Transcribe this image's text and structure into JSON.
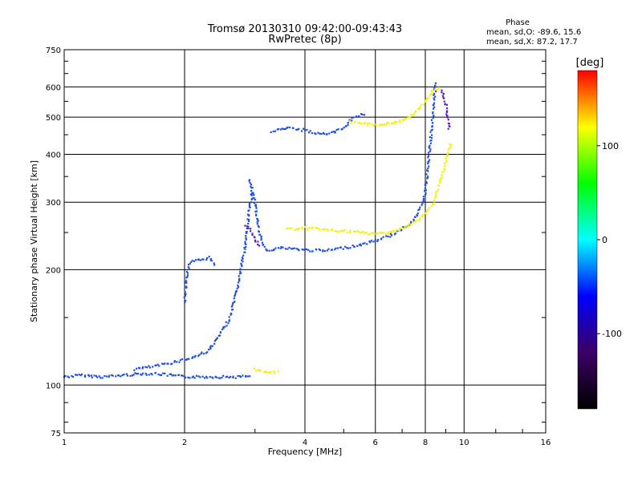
{
  "chart_data": {
    "type": "scatter",
    "title": "Tromsø 20130310 09:42:00-09:43:43",
    "subtitle": "RwPretec (8p)",
    "xlabel": "Frequency [MHz]",
    "ylabel": "Stationary phase Virtual Height [km]",
    "x_scale": "log2",
    "y_scale": "log",
    "xlim": [
      1,
      16
    ],
    "ylim": [
      75,
      750
    ],
    "x_ticks": [
      1,
      2,
      4,
      6,
      8,
      10,
      16
    ],
    "y_ticks": [
      75,
      100,
      200,
      300,
      400,
      500,
      600,
      750
    ],
    "grid": true,
    "stats": {
      "heading": "Phase",
      "line_o": "mean, sd,O: -89.6, 15.6",
      "line_x": "mean, sd,X:  87.2, 17.7"
    },
    "colorbar": {
      "label": "[deg]",
      "range": [
        -180,
        180
      ],
      "ticks": [
        100,
        0,
        -100
      ],
      "colors": [
        "#ff0000",
        "#ffff00",
        "#00ff00",
        "#00ffff",
        "#0000ff",
        "#3c0064",
        "#000000"
      ]
    },
    "series": [
      {
        "mode": "O",
        "color": "#1f4fe6",
        "mean_phase": -89.6,
        "traces": [
          [
            [
              1.0,
              105
            ],
            [
              1.1,
              106
            ],
            [
              1.25,
              105
            ],
            [
              1.4,
              106
            ],
            [
              1.55,
              107
            ],
            [
              1.7,
              107
            ],
            [
              1.85,
              106
            ],
            [
              2.0,
              105
            ],
            [
              2.2,
              105
            ],
            [
              2.5,
              105
            ],
            [
              2.8,
              105
            ],
            [
              2.95,
              106
            ]
          ],
          [
            [
              1.5,
              110
            ],
            [
              1.7,
              112
            ],
            [
              1.9,
              115
            ],
            [
              2.1,
              118
            ],
            [
              2.3,
              123
            ],
            [
              2.45,
              135
            ],
            [
              2.6,
              150
            ],
            [
              2.7,
              175
            ],
            [
              2.78,
              205
            ],
            [
              2.85,
              240
            ],
            [
              2.9,
              280
            ],
            [
              2.95,
              320
            ]
          ],
          [
            [
              2.0,
              165
            ],
            [
              2.02,
              190
            ],
            [
              2.05,
              205
            ],
            [
              2.1,
              210
            ],
            [
              2.2,
              212
            ],
            [
              2.3,
              215
            ],
            [
              2.4,
              205
            ]
          ],
          [
            [
              2.9,
              345
            ],
            [
              3.0,
              300
            ],
            [
              3.05,
              265
            ],
            [
              3.1,
              240
            ],
            [
              3.2,
              225
            ],
            [
              3.5,
              228
            ],
            [
              4.0,
              225
            ],
            [
              4.5,
              224
            ],
            [
              5.0,
              228
            ],
            [
              5.5,
              232
            ],
            [
              6.0,
              238
            ],
            [
              6.5,
              245
            ],
            [
              7.0,
              255
            ],
            [
              7.5,
              270
            ],
            [
              7.8,
              290
            ],
            [
              8.0,
              320
            ],
            [
              8.1,
              360
            ],
            [
              8.2,
              410
            ],
            [
              8.3,
              470
            ],
            [
              8.4,
              540
            ],
            [
              8.5,
              620
            ]
          ],
          [
            [
              3.3,
              460
            ],
            [
              3.6,
              468
            ],
            [
              4.0,
              462
            ],
            [
              4.3,
              452
            ],
            [
              4.7,
              455
            ],
            [
              5.0,
              470
            ],
            [
              5.3,
              500
            ],
            [
              5.7,
              512
            ]
          ]
        ]
      },
      {
        "mode": "X",
        "color": "#f2f200",
        "mean_phase": 87.2,
        "traces": [
          [
            [
              3.0,
              110
            ],
            [
              3.15,
              108
            ],
            [
              3.3,
              108
            ],
            [
              3.45,
              108
            ]
          ],
          [
            [
              3.6,
              255
            ],
            [
              4.0,
              257
            ],
            [
              4.5,
              254
            ],
            [
              5.0,
              252
            ],
            [
              5.5,
              250
            ],
            [
              6.0,
              248
            ],
            [
              6.5,
              250
            ],
            [
              7.0,
              256
            ],
            [
              7.5,
              265
            ],
            [
              8.0,
              280
            ],
            [
              8.4,
              300
            ],
            [
              8.8,
              350
            ],
            [
              9.1,
              400
            ],
            [
              9.3,
              430
            ]
          ],
          [
            [
              5.2,
              485
            ],
            [
              5.7,
              480
            ],
            [
              6.0,
              478
            ],
            [
              6.5,
              480
            ],
            [
              7.0,
              490
            ],
            [
              7.5,
              510
            ],
            [
              7.9,
              540
            ],
            [
              8.3,
              580
            ],
            [
              8.7,
              600
            ]
          ]
        ]
      },
      {
        "mode": "Z",
        "color": "#5a1fbf",
        "mean_phase": -130,
        "traces": [
          [
            [
              2.85,
              260
            ],
            [
              2.95,
              250
            ],
            [
              3.0,
              240
            ],
            [
              3.1,
              230
            ]
          ],
          [
            [
              8.8,
              590
            ],
            [
              9.0,
              540
            ],
            [
              9.2,
              460
            ]
          ]
        ]
      }
    ]
  }
}
